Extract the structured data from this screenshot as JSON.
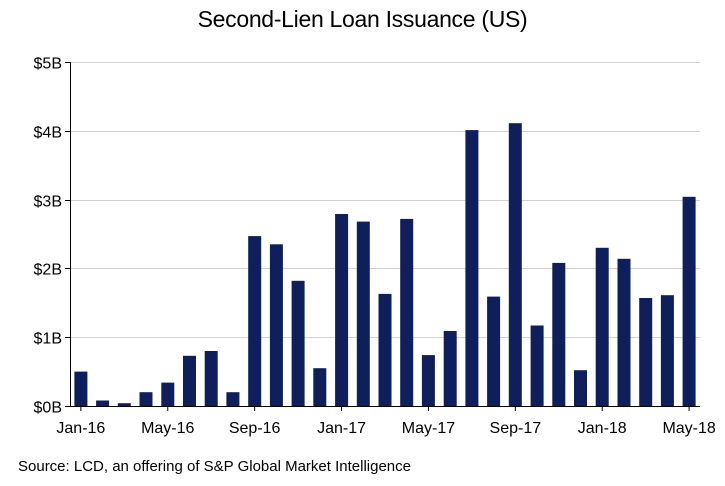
{
  "title": "Second-Lien Loan Issuance (US)",
  "source": "Source: LCD, an offering of S&P Global Market Intelligence",
  "colors": {
    "bar": "#0e1f5b",
    "grid": "#d0d0d0",
    "axis": "#000000"
  },
  "chart_data": {
    "type": "bar",
    "title": "Second-Lien Loan Issuance (US)",
    "xlabel": "",
    "ylabel": "",
    "ylim": [
      0,
      5
    ],
    "y_unit": "billion USD",
    "yticks": [
      0,
      1,
      2,
      3,
      4,
      5
    ],
    "ytick_labels": [
      "$0B",
      "$1B",
      "$2B",
      "$3B",
      "$4B",
      "$5B"
    ],
    "grid": "horizontal",
    "categories": [
      "Jan-16",
      "Feb-16",
      "Mar-16",
      "Apr-16",
      "May-16",
      "Jun-16",
      "Jul-16",
      "Aug-16",
      "Sep-16",
      "Oct-16",
      "Nov-16",
      "Dec-16",
      "Jan-17",
      "Feb-17",
      "Mar-17",
      "Apr-17",
      "May-17",
      "Jun-17",
      "Jul-17",
      "Aug-17",
      "Sep-17",
      "Oct-17",
      "Nov-17",
      "Dec-17",
      "Jan-18",
      "Feb-18",
      "Mar-18",
      "Apr-18",
      "May-18"
    ],
    "values": [
      0.5,
      0.08,
      0.04,
      0.2,
      0.34,
      0.73,
      0.8,
      0.2,
      2.47,
      2.35,
      1.82,
      0.55,
      2.79,
      2.68,
      1.63,
      2.72,
      0.74,
      1.09,
      4.01,
      1.59,
      4.11,
      1.17,
      2.08,
      0.52,
      2.3,
      2.14,
      1.57,
      1.61,
      3.04
    ],
    "xtick_labels": [
      "Jan-16",
      "May-16",
      "Sep-16",
      "Jan-17",
      "May-17",
      "Sep-17",
      "Jan-18",
      "May-18"
    ]
  }
}
